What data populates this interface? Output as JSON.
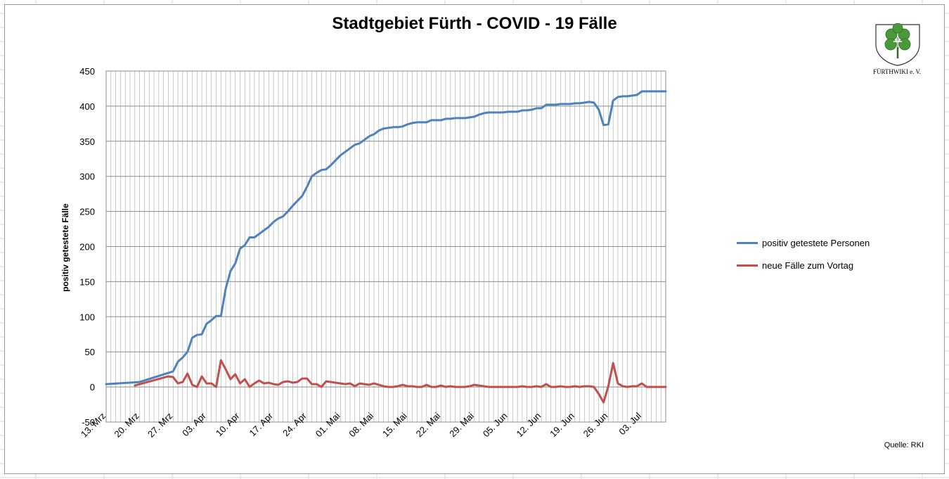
{
  "title": "Stadtgebiet Fürth - COVID - 19 Fälle",
  "logo_text": "FÜRTHWIKI e. V.",
  "source_note": "Quelle: RKI",
  "colors": {
    "series_positive": "#4f81bd",
    "series_new": "#c0504d",
    "gridline": "#a6a6a6",
    "sheet_grid": "#d9d9d9"
  },
  "chart_data": {
    "type": "line",
    "ylabel": "positiv getestete Fälle",
    "ylim": [
      -50,
      450
    ],
    "yticks": [
      -50,
      0,
      50,
      100,
      150,
      200,
      250,
      300,
      350,
      400,
      450
    ],
    "ytick_labels": [
      "-50",
      "0",
      "50",
      "100",
      "150",
      "200",
      "250",
      "300",
      "350",
      "400",
      "450"
    ],
    "x_start": "2020-03-13",
    "x_end": "2020-07-08",
    "xtick_labels": [
      "13. Mrz",
      "20. Mrz",
      "27. Mrz",
      "03. Apr",
      "10. Apr",
      "17. Apr",
      "24. Apr",
      "01. Mai",
      "08. Mai",
      "15. Mai",
      "22. Mai",
      "29. Mai",
      "05. Jun",
      "12. Jun",
      "19. Jun",
      "26. Jun",
      "03. Jul"
    ],
    "grid": true,
    "legend_position": "right",
    "series": [
      {
        "name": "positiv getestete Personen",
        "color": "#4f81bd",
        "points": [
          [
            "13. Mrz",
            4
          ],
          [
            "20. Mrz",
            7
          ],
          [
            "27. Mrz",
            22
          ],
          [
            "28. Mrz",
            36
          ],
          [
            "29. Mrz",
            42
          ],
          [
            "30. Mrz",
            50
          ],
          [
            "31. Mrz",
            70
          ],
          [
            "01. Apr",
            74
          ],
          [
            "02. Apr",
            75
          ],
          [
            "03. Apr",
            90
          ],
          [
            "04. Apr",
            95
          ],
          [
            "05. Apr",
            101
          ],
          [
            "06. Apr",
            101
          ],
          [
            "07. Apr",
            140
          ],
          [
            "08. Apr",
            165
          ],
          [
            "09. Apr",
            176
          ],
          [
            "10. Apr",
            197
          ],
          [
            "11. Apr",
            202
          ],
          [
            "12. Apr",
            213
          ],
          [
            "13. Apr",
            213
          ],
          [
            "14. Apr",
            218
          ],
          [
            "15. Apr",
            223
          ],
          [
            "16. Apr",
            228
          ],
          [
            "17. Apr",
            235
          ],
          [
            "18. Apr",
            240
          ],
          [
            "19. Apr",
            243
          ],
          [
            "20. Apr",
            250
          ],
          [
            "21. Apr",
            258
          ],
          [
            "22. Apr",
            265
          ],
          [
            "23. Apr",
            272
          ],
          [
            "24. Apr",
            285
          ],
          [
            "25. Apr",
            300
          ],
          [
            "26. Apr",
            305
          ],
          [
            "27. Apr",
            309
          ],
          [
            "28. Apr",
            310
          ],
          [
            "29. Apr",
            316
          ],
          [
            "30. Apr",
            323
          ],
          [
            "01. Mai",
            330
          ],
          [
            "02. Mai",
            335
          ],
          [
            "03. Mai",
            340
          ],
          [
            "04. Mai",
            345
          ],
          [
            "05. Mai",
            347
          ],
          [
            "06. Mai",
            352
          ],
          [
            "07. Mai",
            357
          ],
          [
            "08. Mai",
            360
          ],
          [
            "09. Mai",
            365
          ],
          [
            "10. Mai",
            368
          ],
          [
            "11. Mai",
            369
          ],
          [
            "12. Mai",
            370
          ],
          [
            "13. Mai",
            370
          ],
          [
            "14. Mai",
            371
          ],
          [
            "15. Mai",
            374
          ],
          [
            "16. Mai",
            376
          ],
          [
            "17. Mai",
            377
          ],
          [
            "18. Mai",
            377
          ],
          [
            "19. Mai",
            377
          ],
          [
            "20. Mai",
            380
          ],
          [
            "21. Mai",
            380
          ],
          [
            "22. Mai",
            380
          ],
          [
            "23. Mai",
            382
          ],
          [
            "24. Mai",
            382
          ],
          [
            "25. Mai",
            383
          ],
          [
            "26. Mai",
            383
          ],
          [
            "27. Mai",
            383
          ],
          [
            "28. Mai",
            384
          ],
          [
            "29. Mai",
            385
          ],
          [
            "30. Mai",
            388
          ],
          [
            "31. Mai",
            390
          ],
          [
            "01. Jun",
            391
          ],
          [
            "02. Jun",
            391
          ],
          [
            "03. Jun",
            391
          ],
          [
            "04. Jun",
            391
          ],
          [
            "05. Jun",
            392
          ],
          [
            "06. Jun",
            392
          ],
          [
            "07. Jun",
            392
          ],
          [
            "08. Jun",
            394
          ],
          [
            "09. Jun",
            394
          ],
          [
            "10. Jun",
            395
          ],
          [
            "11. Jun",
            397
          ],
          [
            "12. Jun",
            397
          ],
          [
            "13. Jun",
            402
          ],
          [
            "14. Jun",
            402
          ],
          [
            "15. Jun",
            402
          ],
          [
            "16. Jun",
            403
          ],
          [
            "17. Jun",
            403
          ],
          [
            "18. Jun",
            403
          ],
          [
            "19. Jun",
            404
          ],
          [
            "20. Jun",
            404
          ],
          [
            "21. Jun",
            405
          ],
          [
            "22. Jun",
            406
          ],
          [
            "23. Jun",
            405
          ],
          [
            "24. Jun",
            395
          ],
          [
            "25. Jun",
            373
          ],
          [
            "26. Jun",
            374
          ],
          [
            "27. Jun",
            408
          ],
          [
            "28. Jun",
            413
          ],
          [
            "29. Jun",
            414
          ],
          [
            "30. Jun",
            414
          ],
          [
            "01. Jul",
            415
          ],
          [
            "02. Jul",
            416
          ],
          [
            "03. Jul",
            421
          ],
          [
            "04. Jul",
            421
          ],
          [
            "05. Jul",
            421
          ],
          [
            "06. Jul",
            421
          ],
          [
            "07. Jul",
            421
          ],
          [
            "08. Jul",
            421
          ]
        ]
      },
      {
        "name": "neue Fälle zum Vortag",
        "color": "#c0504d",
        "points": [
          [
            "19. Mrz",
            2
          ],
          [
            "26. Mrz",
            15
          ],
          [
            "27. Mrz",
            14
          ],
          [
            "28. Mrz",
            5
          ],
          [
            "29. Mrz",
            7
          ],
          [
            "30. Mrz",
            19
          ],
          [
            "31. Mrz",
            3
          ],
          [
            "01. Apr",
            0
          ],
          [
            "02. Apr",
            15
          ],
          [
            "03. Apr",
            5
          ],
          [
            "04. Apr",
            5
          ],
          [
            "05. Apr",
            0
          ],
          [
            "06. Apr",
            38
          ],
          [
            "07. Apr",
            25
          ],
          [
            "08. Apr",
            11
          ],
          [
            "09. Apr",
            18
          ],
          [
            "10. Apr",
            5
          ],
          [
            "11. Apr",
            11
          ],
          [
            "12. Apr",
            0
          ],
          [
            "13. Apr",
            5
          ],
          [
            "14. Apr",
            9
          ],
          [
            "15. Apr",
            5
          ],
          [
            "16. Apr",
            6
          ],
          [
            "17. Apr",
            4
          ],
          [
            "18. Apr",
            3
          ],
          [
            "19. Apr",
            7
          ],
          [
            "20. Apr",
            8
          ],
          [
            "21. Apr",
            6
          ],
          [
            "22. Apr",
            7
          ],
          [
            "23. Apr",
            12
          ],
          [
            "24. Apr",
            12
          ],
          [
            "25. Apr",
            4
          ],
          [
            "26. Apr",
            4
          ],
          [
            "27. Apr",
            0
          ],
          [
            "28. Apr",
            8
          ],
          [
            "29. Apr",
            7
          ],
          [
            "30. Apr",
            6
          ],
          [
            "01. Mai",
            5
          ],
          [
            "02. Mai",
            4
          ],
          [
            "03. Mai",
            5
          ],
          [
            "04. Mai",
            1
          ],
          [
            "05. Mai",
            5
          ],
          [
            "06. Mai",
            4
          ],
          [
            "07. Mai",
            3
          ],
          [
            "08. Mai",
            5
          ],
          [
            "09. Mai",
            3
          ],
          [
            "10. Mai",
            1
          ],
          [
            "11. Mai",
            0
          ],
          [
            "12. Mai",
            0
          ],
          [
            "13. Mai",
            1
          ],
          [
            "14. Mai",
            3
          ],
          [
            "15. Mai",
            1
          ],
          [
            "16. Mai",
            1
          ],
          [
            "17. Mai",
            0
          ],
          [
            "18. Mai",
            0
          ],
          [
            "19. Mai",
            3
          ],
          [
            "20. Mai",
            0
          ],
          [
            "21. Mai",
            0
          ],
          [
            "22. Mai",
            2
          ],
          [
            "23. Mai",
            0
          ],
          [
            "24. Mai",
            1
          ],
          [
            "25. Mai",
            0
          ],
          [
            "26. Mai",
            0
          ],
          [
            "27. Mai",
            0
          ],
          [
            "28. Mai",
            1
          ],
          [
            "29. Mai",
            3
          ],
          [
            "30. Mai",
            2
          ],
          [
            "31. Mai",
            1
          ],
          [
            "01. Jun",
            0
          ],
          [
            "02. Jun",
            0
          ],
          [
            "03. Jun",
            0
          ],
          [
            "04. Jun",
            0
          ],
          [
            "05. Jun",
            0
          ],
          [
            "06. Jun",
            0
          ],
          [
            "07. Jun",
            0
          ],
          [
            "08. Jun",
            1
          ],
          [
            "09. Jun",
            0
          ],
          [
            "10. Jun",
            0
          ],
          [
            "11. Jun",
            1
          ],
          [
            "12. Jun",
            0
          ],
          [
            "13. Jun",
            4
          ],
          [
            "14. Jun",
            0
          ],
          [
            "15. Jun",
            0
          ],
          [
            "16. Jun",
            1
          ],
          [
            "17. Jun",
            0
          ],
          [
            "18. Jun",
            0
          ],
          [
            "19. Jun",
            1
          ],
          [
            "20. Jun",
            0
          ],
          [
            "21. Jun",
            1
          ],
          [
            "22. Jun",
            1
          ],
          [
            "23. Jun",
            0
          ],
          [
            "24. Jun",
            -10
          ],
          [
            "25. Jun",
            -22
          ],
          [
            "26. Jun",
            1
          ],
          [
            "27. Jun",
            34
          ],
          [
            "28. Jun",
            5
          ],
          [
            "29. Jun",
            1
          ],
          [
            "30. Jun",
            0
          ],
          [
            "01. Jul",
            1
          ],
          [
            "02. Jul",
            1
          ],
          [
            "03. Jul",
            5
          ],
          [
            "04. Jul",
            0
          ],
          [
            "05. Jul",
            0
          ],
          [
            "06. Jul",
            0
          ],
          [
            "07. Jul",
            0
          ],
          [
            "08. Jul",
            0
          ]
        ]
      }
    ]
  }
}
